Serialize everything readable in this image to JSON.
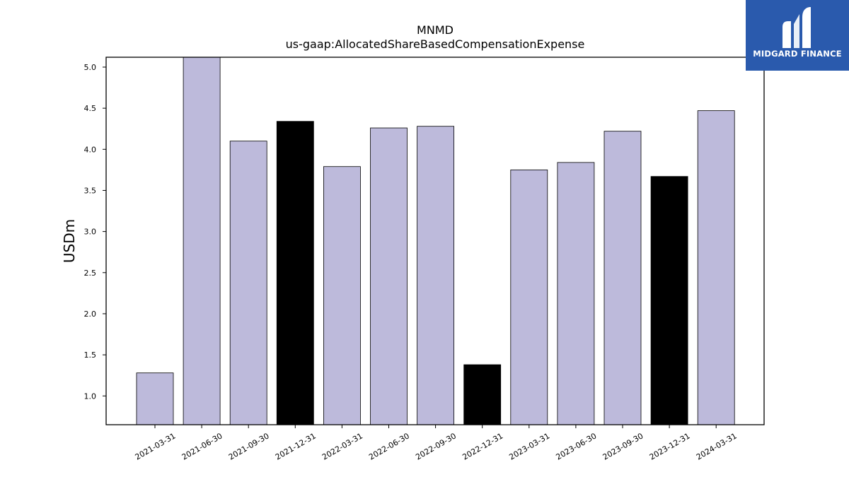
{
  "chart_data": {
    "type": "bar",
    "title": "MNMD",
    "subtitle": "us-gaap:AllocatedShareBasedCompensationExpense",
    "ylabel": "USDm",
    "xlabel": "",
    "ylim": [
      0.65,
      5.12
    ],
    "yticks": [
      "1.0",
      "1.5",
      "2.0",
      "2.5",
      "3.0",
      "3.5",
      "4.0",
      "4.5",
      "5.0"
    ],
    "categories": [
      "2021-03-31",
      "2021-06-30",
      "2021-09-30",
      "2021-12-31",
      "2022-03-31",
      "2022-06-30",
      "2022-09-30",
      "2022-12-31",
      "2023-03-31",
      "2023-06-30",
      "2023-09-30",
      "2023-12-31",
      "2024-03-31"
    ],
    "values": [
      1.28,
      5.15,
      4.1,
      4.34,
      3.79,
      4.26,
      4.28,
      1.38,
      3.75,
      3.84,
      4.22,
      3.67,
      4.47
    ],
    "bar_colors": [
      "#bdbadb",
      "#bdbadb",
      "#bdbadb",
      "#000000",
      "#bdbadb",
      "#bdbadb",
      "#bdbadb",
      "#000000",
      "#bdbadb",
      "#bdbadb",
      "#bdbadb",
      "#000000",
      "#bdbadb"
    ],
    "grid": false,
    "legend": "none"
  },
  "logo": {
    "text": "MIDGARD FINANCE",
    "color": "#2a5aad"
  }
}
